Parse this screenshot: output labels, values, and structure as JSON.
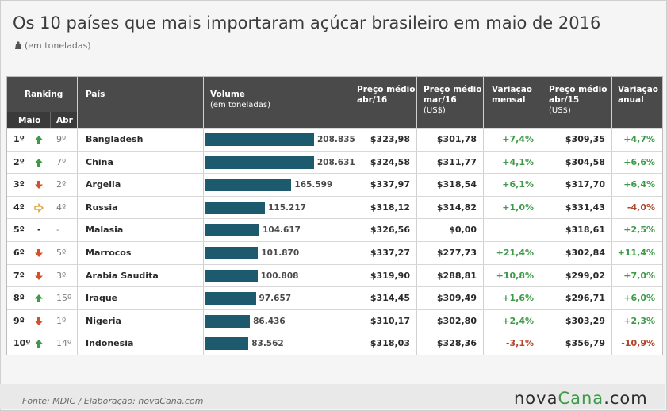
{
  "title": "Os 10 países que mais importaram açúcar brasileiro em maio de 2016",
  "subtitle": "(em toneladas)",
  "headers": {
    "ranking": "Ranking",
    "maio": "Maio",
    "abr": "Abr",
    "pais": "País",
    "volume": "Volume",
    "volume_sub": "(em toneladas)",
    "preco_abr16_l1": "Preço médio",
    "preco_abr16_l2": "abr/16",
    "preco_mar16_l1": "Preço médio",
    "preco_mar16_l2": "mar/16",
    "preco_mar16_sub": "(US$)",
    "var_mensal_l1": "Variação",
    "var_mensal_l2": "mensal",
    "preco_abr15_l1": "Preço médio",
    "preco_abr15_l2": "abr/15",
    "preco_abr15_sub": "(US$)",
    "var_anual_l1": "Variação",
    "var_anual_l2": "anual"
  },
  "colors": {
    "bar": "#1d5a6e",
    "up": "#3e9a49",
    "down": "#d4502a",
    "same": "#e0a030",
    "positive": "#3e9a49",
    "negative": "#b0462a"
  },
  "chart_data": {
    "type": "bar",
    "categories": [
      "Bangladesh",
      "China",
      "Argelia",
      "Russia",
      "Malasia",
      "Marrocos",
      "Arabia Saudita",
      "Iraque",
      "Nigeria",
      "Indonesia"
    ],
    "values": [
      208835,
      208631,
      165599,
      115217,
      104617,
      101870,
      100808,
      97657,
      86436,
      83562
    ],
    "ylim": [
      0,
      208835
    ]
  },
  "rows": [
    {
      "rank_maio": "1º",
      "rank_abr": "9º",
      "trend": "up",
      "pais": "Bangladesh",
      "volume_label": "208.835",
      "preco_abr16": "$323,98",
      "preco_mar16": "$301,78",
      "var_mensal": "+7,4%",
      "preco_abr15": "$309,35",
      "var_anual": "+4,7%"
    },
    {
      "rank_maio": "2º",
      "rank_abr": "7º",
      "trend": "up",
      "pais": "China",
      "volume_label": "208.631",
      "preco_abr16": "$324,58",
      "preco_mar16": "$311,77",
      "var_mensal": "+4,1%",
      "preco_abr15": "$304,58",
      "var_anual": "+6,6%"
    },
    {
      "rank_maio": "3º",
      "rank_abr": "2º",
      "trend": "down",
      "pais": "Argelia",
      "volume_label": "165.599",
      "preco_abr16": "$337,97",
      "preco_mar16": "$318,54",
      "var_mensal": "+6,1%",
      "preco_abr15": "$317,70",
      "var_anual": "+6,4%"
    },
    {
      "rank_maio": "4º",
      "rank_abr": "4º",
      "trend": "same",
      "pais": "Russia",
      "volume_label": "115.217",
      "preco_abr16": "$318,12",
      "preco_mar16": "$314,82",
      "var_mensal": "+1,0%",
      "preco_abr15": "$331,43",
      "var_anual": "-4,0%"
    },
    {
      "rank_maio": "5º",
      "rank_abr": "-",
      "trend": "none",
      "pais": "Malasia",
      "volume_label": "104.617",
      "preco_abr16": "$326,56",
      "preco_mar16": "$0,00",
      "var_mensal": "",
      "preco_abr15": "$318,61",
      "var_anual": "+2,5%"
    },
    {
      "rank_maio": "6º",
      "rank_abr": "5º",
      "trend": "down",
      "pais": "Marrocos",
      "volume_label": "101.870",
      "preco_abr16": "$337,27",
      "preco_mar16": "$277,73",
      "var_mensal": "+21,4%",
      "preco_abr15": "$302,84",
      "var_anual": "+11,4%"
    },
    {
      "rank_maio": "7º",
      "rank_abr": "3º",
      "trend": "down",
      "pais": "Arabia Saudita",
      "volume_label": "100.808",
      "preco_abr16": "$319,90",
      "preco_mar16": "$288,81",
      "var_mensal": "+10,8%",
      "preco_abr15": "$299,02",
      "var_anual": "+7,0%"
    },
    {
      "rank_maio": "8º",
      "rank_abr": "15º",
      "trend": "up",
      "pais": "Iraque",
      "volume_label": "97.657",
      "preco_abr16": "$314,45",
      "preco_mar16": "$309,49",
      "var_mensal": "+1,6%",
      "preco_abr15": "$296,71",
      "var_anual": "+6,0%"
    },
    {
      "rank_maio": "9º",
      "rank_abr": "1º",
      "trend": "down",
      "pais": "Nigeria",
      "volume_label": "86.436",
      "preco_abr16": "$310,17",
      "preco_mar16": "$302,80",
      "var_mensal": "+2,4%",
      "preco_abr15": "$303,29",
      "var_anual": "+2,3%"
    },
    {
      "rank_maio": "10º",
      "rank_abr": "14º",
      "trend": "up",
      "pais": "Indonesia",
      "volume_label": "83.562",
      "preco_abr16": "$318,03",
      "preco_mar16": "$328,36",
      "var_mensal": "-3,1%",
      "preco_abr15": "$356,79",
      "var_anual": "-10,9%"
    }
  ],
  "footer": {
    "source": "Fonte: MDIC / Elaboração: novaCana.com",
    "logo_a": "nova",
    "logo_b": "Cana",
    "logo_c": ".com"
  }
}
